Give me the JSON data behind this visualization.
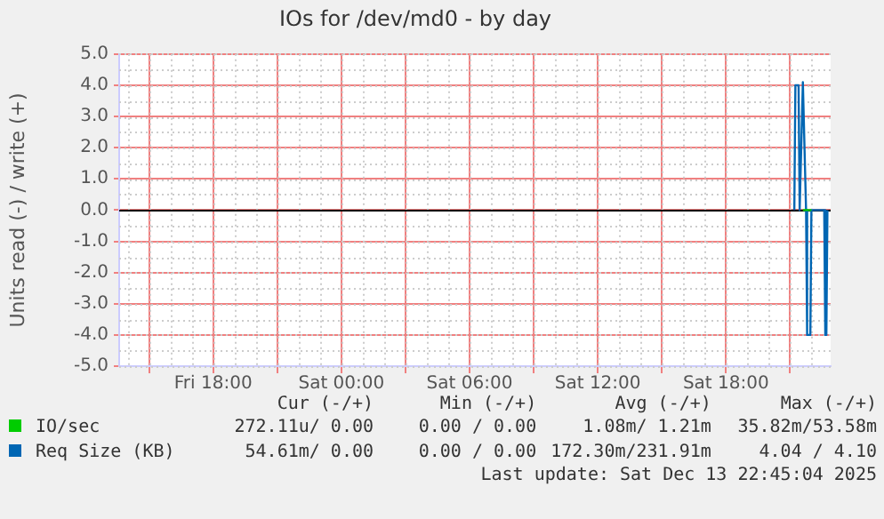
{
  "chart_data": {
    "type": "line",
    "title": "IOs for /dev/md0 - by day",
    "ylabel": "Units read (-) / write (+)",
    "xlim": [
      "2025-12-12T13:36",
      "2025-12-13T22:54"
    ],
    "xticks": [
      {
        "value": "2025-12-12T15:00",
        "label": null
      },
      {
        "value": "2025-12-12T18:00",
        "label": "Fri 18:00"
      },
      {
        "value": "2025-12-12T21:00",
        "label": null
      },
      {
        "value": "2025-12-13T00:00",
        "label": "Sat 00:00"
      },
      {
        "value": "2025-12-13T03:00",
        "label": null
      },
      {
        "value": "2025-12-13T06:00",
        "label": "Sat 06:00"
      },
      {
        "value": "2025-12-13T09:00",
        "label": null
      },
      {
        "value": "2025-12-13T12:00",
        "label": "Sat 12:00"
      },
      {
        "value": "2025-12-13T15:00",
        "label": null
      },
      {
        "value": "2025-12-13T18:00",
        "label": "Sat 18:00"
      },
      {
        "value": "2025-12-13T21:00",
        "label": null
      }
    ],
    "ylim": [
      -5,
      5
    ],
    "yticks": [
      {
        "value": -5,
        "label": "-5.0"
      },
      {
        "value": -4,
        "label": "-4.0"
      },
      {
        "value": -3,
        "label": "-3.0"
      },
      {
        "value": -2,
        "label": "-2.0"
      },
      {
        "value": -1,
        "label": "-1.0"
      },
      {
        "value": 0,
        "label": "0.0"
      },
      {
        "value": 1,
        "label": "1.0"
      },
      {
        "value": 2,
        "label": "2.0"
      },
      {
        "value": 3,
        "label": "3.0"
      },
      {
        "value": 4,
        "label": "4.0"
      },
      {
        "value": 5,
        "label": "5.0"
      }
    ],
    "series": [
      {
        "name": "IO/sec",
        "color": "#00cc00",
        "x": [
          "2025-12-13T21:36",
          "2025-12-13T22:00"
        ],
        "values": [
          0,
          0
        ]
      },
      {
        "name": "Req Size (KB)",
        "color": "#0066b3",
        "x": [
          "2025-12-13T21:12",
          "2025-12-13T21:15",
          "2025-12-13T21:24",
          "2025-12-13T21:27",
          "2025-12-13T21:36",
          "2025-12-13T21:39",
          "2025-12-13T21:45",
          "2025-12-13T21:48",
          "2025-12-13T21:57",
          "2025-12-13T22:00",
          "2025-12-13T22:36",
          "2025-12-13T22:39",
          "2025-12-13T22:42",
          "2025-12-13T22:45"
        ],
        "values": [
          0,
          4.0,
          4.0,
          0,
          4.1,
          4.1,
          0,
          -4.0,
          -4.0,
          0,
          0,
          -4.0,
          -4.0,
          0
        ]
      }
    ],
    "ref_lines": [
      {
        "axis": "y",
        "value": 0,
        "color": "#000000"
      }
    ],
    "grid": true,
    "legend": "bottom",
    "annotations": [
      "Cur (-/+)",
      "Min (-/+)",
      "Avg (-/+)",
      "Max (-/+)",
      "272.11u/ 0.00",
      "0.00 / 0.00",
      "1.08m/ 1.21m",
      "35.82m/53.58m",
      "54.61m/ 0.00",
      "0.00 / 0.00",
      "172.30m/231.91m",
      "4.04 / 4.10",
      "Last update: Sat Dec 13 22:45:04 2025"
    ]
  }
}
